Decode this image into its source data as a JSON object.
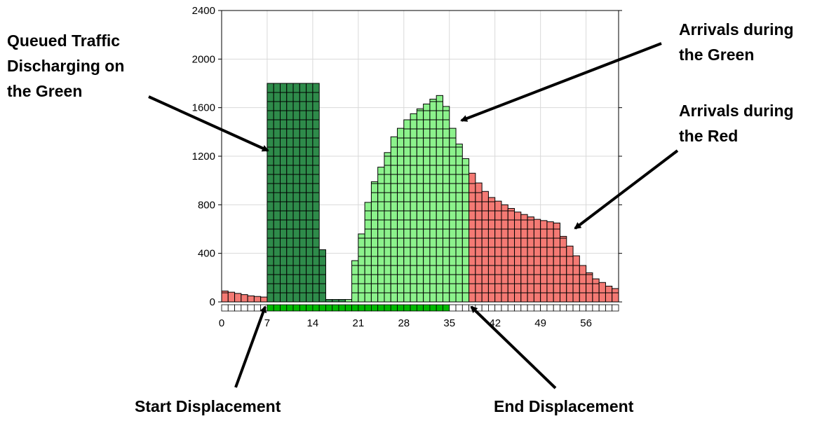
{
  "annotations": {
    "queued": [
      "Queued Traffic",
      "Discharging on",
      "the Green"
    ],
    "arrivals_green": [
      "Arrivals during",
      "the Green"
    ],
    "arrivals_red": [
      "Arrivals during",
      "the Red"
    ],
    "start_displacement": "Start Displacement",
    "end_displacement": "End Displacement"
  },
  "colors": {
    "red_phase": "#f47a74",
    "green_arrivals": "#8cf28c",
    "green_queue": "#2e8b4a",
    "signal_green": "#00b800",
    "grid": "#d9d9d9"
  },
  "chart_data": {
    "type": "bar",
    "title": "",
    "xlabel": "",
    "ylabel": "",
    "xlim": [
      0,
      61
    ],
    "ylim": [
      0,
      2400
    ],
    "x_ticks": [
      0,
      7,
      14,
      21,
      28,
      35,
      42,
      49,
      56
    ],
    "y_ticks": [
      0,
      400,
      800,
      1200,
      1600,
      2000,
      2400
    ],
    "grid": true,
    "series": [
      {
        "name": "Arrivals during the Red",
        "x": [
          0,
          1,
          2,
          3,
          4,
          5,
          6,
          38,
          39,
          40,
          41,
          42,
          43,
          44,
          45,
          46,
          47,
          48,
          49,
          50,
          51,
          52,
          53,
          54,
          55,
          56,
          57,
          58,
          59,
          60
        ],
        "values": [
          90,
          80,
          70,
          60,
          50,
          45,
          40,
          1060,
          980,
          910,
          860,
          830,
          800,
          770,
          740,
          720,
          700,
          680,
          670,
          660,
          650,
          540,
          460,
          380,
          300,
          240,
          190,
          160,
          130,
          110
        ]
      },
      {
        "name": "Arrivals during the Green",
        "x": [
          19,
          20,
          21,
          22,
          23,
          24,
          25,
          26,
          27,
          28,
          29,
          30,
          31,
          32,
          33,
          34,
          35,
          36,
          37
        ],
        "values": [
          20,
          340,
          560,
          820,
          990,
          1110,
          1230,
          1360,
          1430,
          1500,
          1550,
          1590,
          1630,
          1670,
          1700,
          1610,
          1430,
          1300,
          1180
        ]
      },
      {
        "name": "Queued Traffic Discharging on the Green",
        "x": [
          7,
          8,
          9,
          10,
          11,
          12,
          13,
          14,
          15,
          16,
          17,
          18
        ],
        "values": [
          1800,
          1800,
          1800,
          1800,
          1800,
          1800,
          1800,
          1800,
          430,
          20,
          20,
          20
        ]
      }
    ],
    "signal_strip": {
      "cells": 61,
      "green_from": 7,
      "green_to": 35
    }
  }
}
